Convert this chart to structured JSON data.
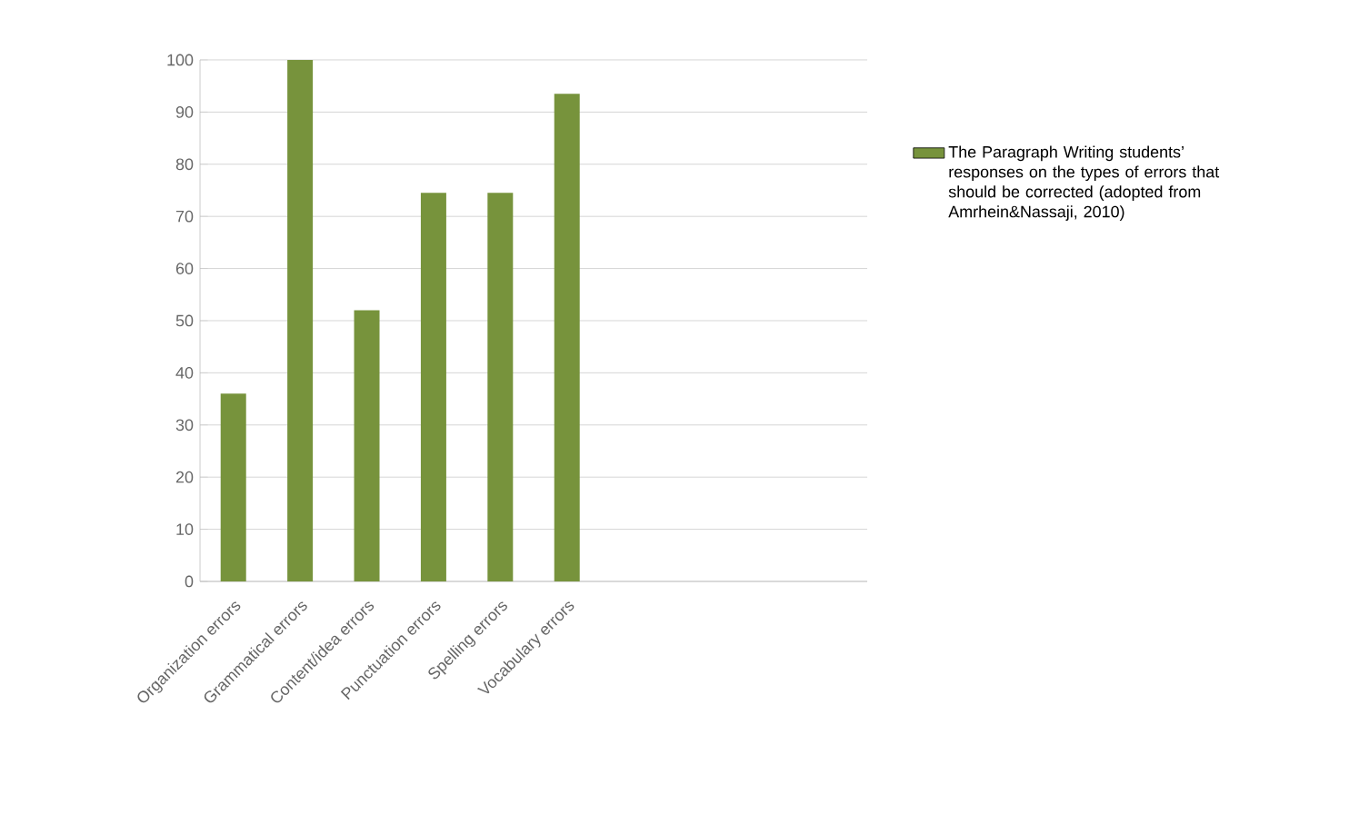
{
  "chart_data": {
    "type": "bar",
    "categories": [
      "Organization errors",
      "Grammatical errors",
      "Content/idea errors",
      "Punctuation errors",
      "Spelling errors",
      "Vocabulary errors",
      null,
      null,
      null,
      null
    ],
    "series": [
      {
        "name": "The Paragraph Writing students’ responses on the types of errors that should be corrected (adopted from Amrhein&Nassaji, 2010)",
        "color": "#77933c",
        "values": [
          36,
          100,
          52,
          74.5,
          74.5,
          93.5,
          null,
          null,
          null,
          null
        ]
      }
    ],
    "ylim": [
      0,
      100
    ],
    "yticks": [
      0,
      10,
      20,
      30,
      40,
      50,
      60,
      70,
      80,
      90,
      100
    ],
    "grid": "y",
    "legend": "right"
  }
}
